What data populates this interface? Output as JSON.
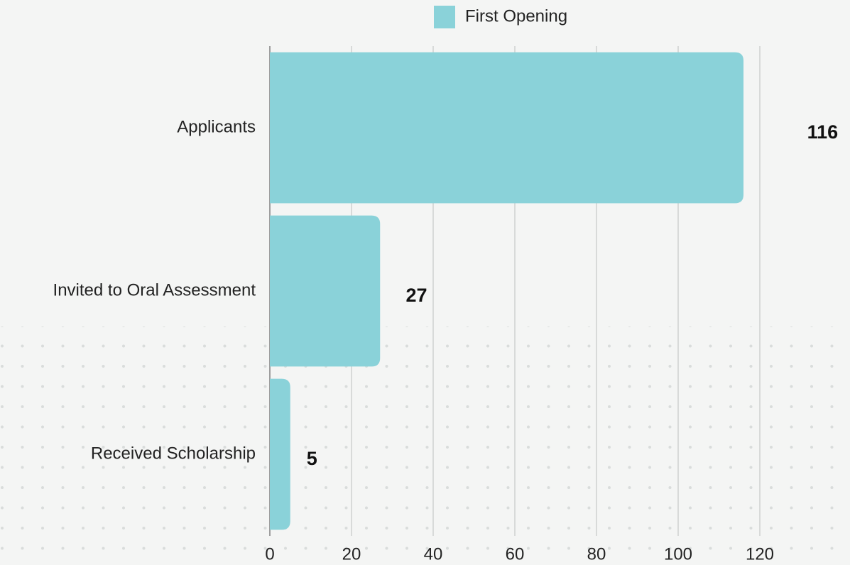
{
  "chart_data": {
    "type": "bar",
    "orientation": "horizontal",
    "categories": [
      "Applicants",
      "Invited to Oral Assessment",
      "Received Scholarship"
    ],
    "series": [
      {
        "name": "First Opening",
        "color": "#8ad2d9",
        "values": [
          116,
          27,
          5
        ]
      }
    ],
    "xlim": [
      0,
      120
    ],
    "xticks": [
      0,
      20,
      40,
      60,
      80,
      100,
      120
    ],
    "grid": true,
    "legend": "top"
  }
}
